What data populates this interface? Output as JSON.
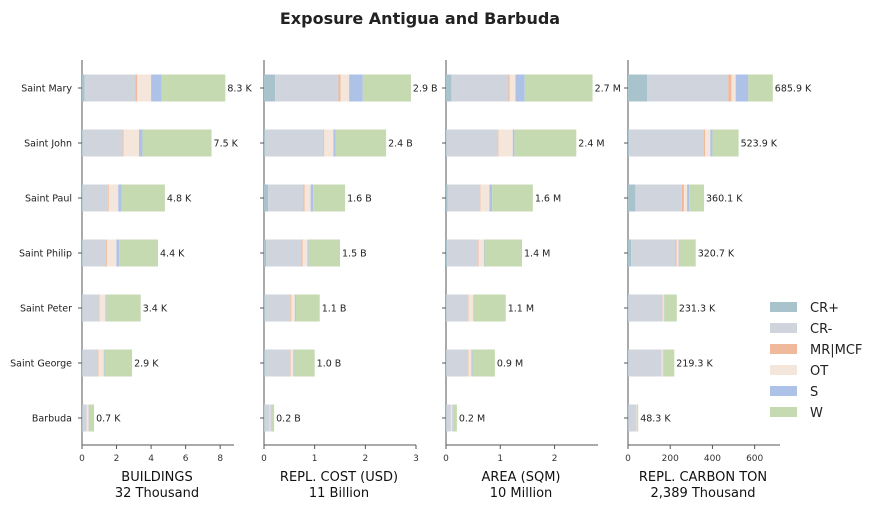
{
  "title": "Exposure Antigua and Barbuda",
  "regions": [
    "Saint Mary",
    "Saint John",
    "Saint Paul",
    "Saint Philip",
    "Saint Peter",
    "Saint George",
    "Barbuda"
  ],
  "legend": [
    {
      "name": "CR+",
      "color": "#a9c3cc"
    },
    {
      "name": "CR-",
      "color": "#d0d4dd"
    },
    {
      "name": "MR|MCF",
      "color": "#f0b99b"
    },
    {
      "name": "OT",
      "color": "#f4e6da"
    },
    {
      "name": "S",
      "color": "#aec1e6"
    },
    {
      "name": "W",
      "color": "#c5dab0"
    }
  ],
  "chart_data": [
    {
      "type": "bar",
      "orientation": "horizontal",
      "stacked": true,
      "xlabel": "BUILDINGS",
      "subtitle": "32 Thousand",
      "xlim": [
        0,
        8.8
      ],
      "xticks": [
        0,
        2,
        4,
        6,
        8
      ],
      "categories": [
        "Saint Mary",
        "Saint John",
        "Saint Paul",
        "Saint Philip",
        "Saint Peter",
        "Saint George",
        "Barbuda"
      ],
      "series": [
        {
          "name": "CR+",
          "values": [
            0.15,
            0.05,
            0.05,
            0.05,
            0.03,
            0.03,
            0.02
          ]
        },
        {
          "name": "CR-",
          "values": [
            2.95,
            2.3,
            1.45,
            1.35,
            0.95,
            0.9,
            0.25
          ]
        },
        {
          "name": "MR|MCF",
          "values": [
            0.1,
            0.05,
            0.05,
            0.05,
            0.03,
            0.03,
            0.01
          ]
        },
        {
          "name": "OT",
          "values": [
            0.8,
            0.9,
            0.55,
            0.55,
            0.35,
            0.3,
            0.1
          ]
        },
        {
          "name": "S",
          "values": [
            0.6,
            0.2,
            0.2,
            0.15,
            0.05,
            0.04,
            0.02
          ]
        },
        {
          "name": "W",
          "values": [
            3.7,
            4.0,
            2.5,
            2.25,
            1.99,
            1.6,
            0.3
          ]
        }
      ],
      "labels": [
        "8.3 K",
        "7.5 K",
        "4.8 K",
        "4.4 K",
        "3.4 K",
        "2.9 K",
        "0.7 K"
      ]
    },
    {
      "type": "bar",
      "orientation": "horizontal",
      "stacked": true,
      "xlabel": "REPL. COST (USD)",
      "subtitle": "11 Billion",
      "xlim": [
        0,
        3.0
      ],
      "xticks": [
        0,
        1,
        2,
        3
      ],
      "categories": [
        "Saint Mary",
        "Saint John",
        "Saint Paul",
        "Saint Philip",
        "Saint Peter",
        "Saint George",
        "Barbuda"
      ],
      "series": [
        {
          "name": "CR+",
          "values": [
            0.22,
            0.02,
            0.08,
            0.04,
            0.02,
            0.02,
            0.01
          ]
        },
        {
          "name": "CR-",
          "values": [
            1.25,
            1.15,
            0.7,
            0.7,
            0.5,
            0.5,
            0.1
          ]
        },
        {
          "name": "MR|MCF",
          "values": [
            0.04,
            0.02,
            0.02,
            0.02,
            0.02,
            0.01,
            0.0
          ]
        },
        {
          "name": "OT",
          "values": [
            0.17,
            0.18,
            0.12,
            0.1,
            0.07,
            0.05,
            0.02
          ]
        },
        {
          "name": "S",
          "values": [
            0.27,
            0.04,
            0.05,
            0.02,
            0.02,
            0.02,
            0.01
          ]
        },
        {
          "name": "W",
          "values": [
            0.95,
            1.0,
            0.63,
            0.62,
            0.47,
            0.4,
            0.06
          ]
        }
      ],
      "labels": [
        "2.9 B",
        "2.4 B",
        "1.6 B",
        "1.5 B",
        "1.1 B",
        "1.0 B",
        "0.2 B"
      ]
    },
    {
      "type": "bar",
      "orientation": "horizontal",
      "stacked": true,
      "xlabel": "AREA (SQM)",
      "subtitle": "10 Million",
      "xlim": [
        0,
        2.8
      ],
      "xticks": [
        0,
        1,
        2
      ],
      "categories": [
        "Saint Mary",
        "Saint John",
        "Saint Paul",
        "Saint Philip",
        "Saint Peter",
        "Saint George",
        "Barbuda"
      ],
      "series": [
        {
          "name": "CR+",
          "values": [
            0.1,
            0.01,
            0.03,
            0.02,
            0.01,
            0.01,
            0.01
          ]
        },
        {
          "name": "CR-",
          "values": [
            1.05,
            0.95,
            0.6,
            0.57,
            0.4,
            0.4,
            0.08
          ]
        },
        {
          "name": "MR|MCF",
          "values": [
            0.02,
            0.01,
            0.01,
            0.01,
            0.01,
            0.01,
            0.0
          ]
        },
        {
          "name": "OT",
          "values": [
            0.11,
            0.26,
            0.16,
            0.1,
            0.08,
            0.05,
            0.03
          ]
        },
        {
          "name": "S",
          "values": [
            0.17,
            0.03,
            0.05,
            0.01,
            0.01,
            0.02,
            0.01
          ]
        },
        {
          "name": "W",
          "values": [
            1.25,
            1.14,
            0.75,
            0.69,
            0.59,
            0.41,
            0.07
          ]
        }
      ],
      "labels": [
        "2.7 M",
        "2.4 M",
        "1.6 M",
        "1.4 M",
        "1.1 M",
        "0.9 M",
        "0.2 M"
      ]
    },
    {
      "type": "bar",
      "orientation": "horizontal",
      "stacked": true,
      "xlabel": "REPL. CARBON TON",
      "subtitle": "2,389 Thousand",
      "xlim": [
        0,
        720
      ],
      "xticks": [
        0,
        200,
        400,
        600
      ],
      "categories": [
        "Saint Mary",
        "Saint John",
        "Saint Paul",
        "Saint Philip",
        "Saint Peter",
        "Saint George",
        "Barbuda"
      ],
      "series": [
        {
          "name": "CR+",
          "values": [
            90,
            5,
            35,
            15,
            3,
            3,
            2
          ]
        },
        {
          "name": "CR-",
          "values": [
            385,
            355,
            220,
            210,
            160,
            155,
            38
          ]
        },
        {
          "name": "MR|MCF",
          "values": [
            15,
            5,
            10,
            5,
            2,
            2,
            1
          ]
        },
        {
          "name": "OT",
          "values": [
            20,
            25,
            15,
            10,
            5,
            5,
            2
          ]
        },
        {
          "name": "S",
          "values": [
            60,
            10,
            10,
            5,
            2,
            2,
            1
          ]
        },
        {
          "name": "W",
          "values": [
            115.9,
            123.9,
            70.1,
            75.7,
            59.3,
            52.3,
            4.3
          ]
        }
      ],
      "labels": [
        "685.9 K",
        "523.9 K",
        "360.1 K",
        "320.7 K",
        "231.3 K",
        "219.3 K",
        "48.3 K"
      ]
    }
  ]
}
